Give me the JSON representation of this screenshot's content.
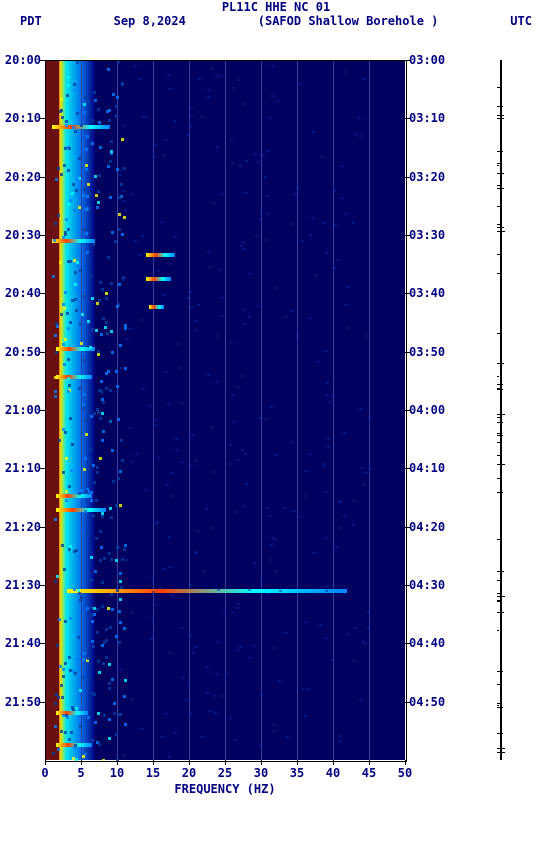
{
  "header": {
    "title": "PL11C HHE NC 01",
    "left_tz": "PDT",
    "date": "Sep 8,2024",
    "station": "(SAFOD Shallow Borehole )",
    "right_tz": "UTC"
  },
  "xaxis": {
    "label": "FREQUENCY (HZ)",
    "ticks": [
      0,
      5,
      10,
      15,
      20,
      25,
      30,
      35,
      40,
      45,
      50
    ],
    "min": 0,
    "max": 50
  },
  "yaxis_left": {
    "ticks": [
      "20:00",
      "20:10",
      "20:20",
      "20:30",
      "20:40",
      "20:50",
      "21:00",
      "21:10",
      "21:20",
      "21:30",
      "21:40",
      "21:50"
    ]
  },
  "yaxis_right": {
    "ticks": [
      "03:00",
      "03:10",
      "03:20",
      "03:30",
      "03:40",
      "03:50",
      "04:00",
      "04:10",
      "04:20",
      "04:30",
      "04:40",
      "04:50"
    ]
  },
  "grid_x": [
    5,
    10,
    15,
    20,
    25,
    30,
    35,
    40,
    45
  ],
  "colors": {
    "background_plot": "#000060",
    "grid": "#3040a0",
    "text": "#000080",
    "low_band": "#6b1010"
  },
  "events": [
    {
      "top_pct": 9.3,
      "left_pct": 2,
      "width_pct": 16
    },
    {
      "top_pct": 25.5,
      "left_pct": 2,
      "width_pct": 12
    },
    {
      "top_pct": 27.5,
      "left_pct": 28,
      "width_pct": 8
    },
    {
      "top_pct": 31.0,
      "left_pct": 28,
      "width_pct": 7
    },
    {
      "top_pct": 35.0,
      "left_pct": 29,
      "width_pct": 4
    },
    {
      "top_pct": 41.0,
      "left_pct": 3,
      "width_pct": 11
    },
    {
      "top_pct": 45.0,
      "left_pct": 3,
      "width_pct": 10
    },
    {
      "top_pct": 62.0,
      "left_pct": 3,
      "width_pct": 10
    },
    {
      "top_pct": 64.0,
      "left_pct": 3,
      "width_pct": 14
    },
    {
      "top_pct": 75.6,
      "left_pct": 6,
      "width_pct": 78
    },
    {
      "top_pct": 93.0,
      "left_pct": 3,
      "width_pct": 9
    },
    {
      "top_pct": 97.5,
      "left_pct": 3,
      "width_pct": 10
    }
  ]
}
